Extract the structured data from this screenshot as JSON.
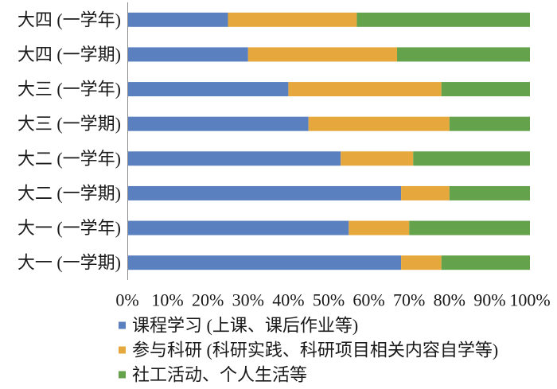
{
  "chart_data": {
    "type": "bar",
    "orientation": "horizontal",
    "stacked": true,
    "categories": [
      "大四 (一学年)",
      "大四 (一学期)",
      "大三 (一学年)",
      "大三 (一学期)",
      "大二 (一学年)",
      "大二 (一学期)",
      "大一 (一学年)",
      "大一 (一学期)"
    ],
    "series": [
      {
        "name": "课程学习 (上课、课后作业等)",
        "color": "#5b80c0",
        "values": [
          25,
          30,
          40,
          45,
          53,
          68,
          55,
          68
        ]
      },
      {
        "name": "参与科研 (科研实践、科研项目相关内容自学等)",
        "color": "#e6a83c",
        "values": [
          32,
          37,
          38,
          35,
          18,
          12,
          15,
          10
        ]
      },
      {
        "name": "社工活动、个人生活等",
        "color": "#65a24c",
        "values": [
          43,
          33,
          22,
          20,
          29,
          20,
          30,
          22
        ]
      }
    ],
    "xlim": [
      0,
      100
    ],
    "xticks": [
      "0%",
      "10%",
      "20%",
      "30%",
      "40%",
      "50%",
      "60%",
      "70%",
      "80%",
      "90%",
      "100%"
    ],
    "legend": "bottom",
    "grid": false
  }
}
